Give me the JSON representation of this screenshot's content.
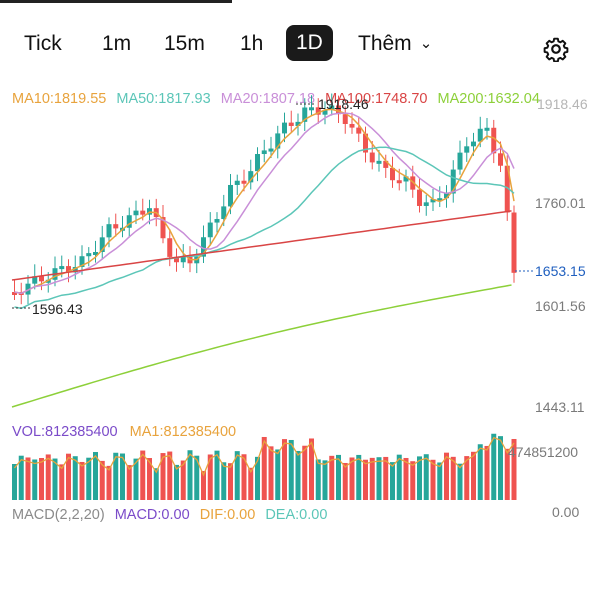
{
  "tabs": [
    {
      "label": "Tick",
      "active": false
    },
    {
      "label": "1m",
      "active": false
    },
    {
      "label": "15m",
      "active": false
    },
    {
      "label": "1h",
      "active": false
    },
    {
      "label": "1D",
      "active": true
    },
    {
      "label": "Thêm",
      "active": false
    }
  ],
  "colors": {
    "up": "#26a69a",
    "down": "#ef5350",
    "ma10": "#e8a33d",
    "ma50": "#5cc6b8",
    "ma20": "#c98fd8",
    "ma100": "#d94545",
    "ma200": "#8dd03a",
    "vol": "#7b4bc9",
    "ma1": "#e8a33d",
    "macd_title": "#8a8a8a",
    "macd": "#7b4bc9",
    "dif": "#e8a33d",
    "dea": "#5cc6b8"
  },
  "ma_legend": {
    "ma10": "MA10:1819.55",
    "ma50": "MA50:1817.93",
    "ma20": "MA20:1807.18",
    "ma100": "MA100:1748.70",
    "ma200": "MA200:1632.04"
  },
  "price_axis": {
    "high_label": "1918.46",
    "p1": "1760.01",
    "current": "1653.15",
    "p2": "1601.56",
    "low_label": "1596.43",
    "p3": "1443.11"
  },
  "volume": {
    "vol_label": "VOL:812385400",
    "ma1_label": "MA1:812385400",
    "axis_max": "474851200"
  },
  "macd": {
    "title": "MACD(2,2,20)",
    "macd": "MACD:0.00",
    "dif": "DIF:0.00",
    "dea": "DEA:0.00",
    "axis": "0.00"
  },
  "icons": {
    "settings": "gear-icon",
    "more": "chevron-down-icon"
  }
}
